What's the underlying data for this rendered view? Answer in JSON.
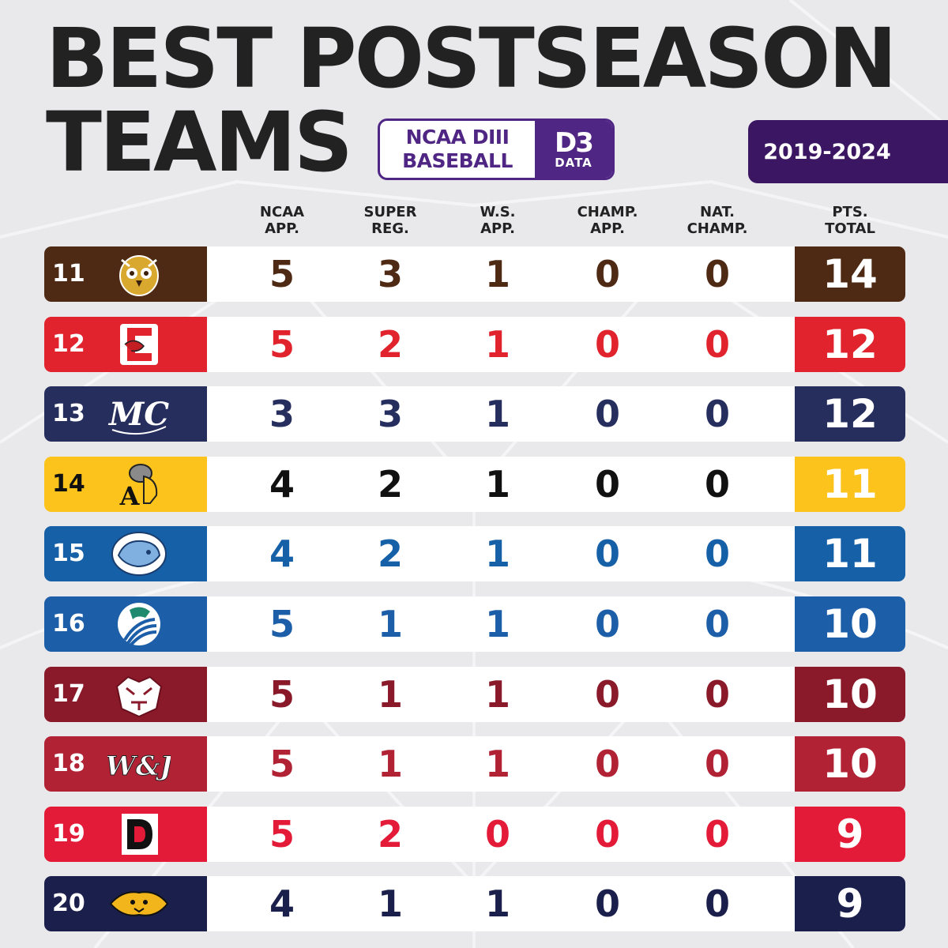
{
  "title": {
    "line1": "BEST POSTSEASON",
    "line2": "TEAMS"
  },
  "logo": {
    "line1": "NCAA DIII",
    "line2": "BASEBALL",
    "mark": "D3",
    "mark_sub": "DATA"
  },
  "years": "2019-2024",
  "colors": {
    "title": "#222222",
    "brand_purple": "#4f2683",
    "years_bg": "#3b1763",
    "background": "#e9e9ec"
  },
  "columns": [
    {
      "line1": "NCAA",
      "line2": "APP."
    },
    {
      "line1": "SUPER",
      "line2": "REG."
    },
    {
      "line1": "W.S.",
      "line2": "APP."
    },
    {
      "line1": "CHAMP.",
      "line2": "APP."
    },
    {
      "line1": "NAT.",
      "line2": "CHAMP."
    },
    {
      "line1": "PTS.",
      "line2": "TOTAL"
    }
  ],
  "rows": [
    {
      "rank": "11",
      "emblem": "owl-logo",
      "color": "#4e2a14",
      "text_color": "#4e2a14",
      "ncaa_app": "5",
      "super_reg": "3",
      "ws_app": "1",
      "champ_app": "0",
      "nat_champ": "0",
      "total": "14"
    },
    {
      "rank": "12",
      "emblem": "c-dragon-logo",
      "color": "#e0232c",
      "text_color": "#e0232c",
      "ncaa_app": "5",
      "super_reg": "2",
      "ws_app": "1",
      "champ_app": "0",
      "nat_champ": "0",
      "total": "12"
    },
    {
      "rank": "13",
      "emblem": "mc-script-logo",
      "color": "#262e5e",
      "text_color": "#262e5e",
      "ncaa_app": "3",
      "super_reg": "3",
      "ws_app": "1",
      "champ_app": "0",
      "nat_champ": "0",
      "total": "12"
    },
    {
      "rank": "14",
      "emblem": "bulldog-a-logo",
      "color": "#fbc31c",
      "text_color": "#111111",
      "ncaa_app": "4",
      "super_reg": "2",
      "ws_app": "1",
      "champ_app": "0",
      "nat_champ": "0",
      "total": "11"
    },
    {
      "rank": "15",
      "emblem": "blue-cat-logo",
      "color": "#1660a8",
      "text_color": "#1660a8",
      "ncaa_app": "4",
      "super_reg": "2",
      "ws_app": "1",
      "champ_app": "0",
      "nat_champ": "0",
      "total": "11"
    },
    {
      "rank": "16",
      "emblem": "hawk-logo",
      "color": "#1d5ea8",
      "text_color": "#1d5ea8",
      "ncaa_app": "5",
      "super_reg": "1",
      "ws_app": "1",
      "champ_app": "0",
      "nat_champ": "0",
      "total": "10"
    },
    {
      "rank": "17",
      "emblem": "tiger-logo",
      "color": "#8a1a2a",
      "text_color": "#8a1a2a",
      "ncaa_app": "5",
      "super_reg": "1",
      "ws_app": "1",
      "champ_app": "0",
      "nat_champ": "0",
      "total": "10"
    },
    {
      "rank": "18",
      "emblem": "wj-logo",
      "color": "#b22235",
      "text_color": "#b22235",
      "ncaa_app": "5",
      "super_reg": "1",
      "ws_app": "1",
      "champ_app": "0",
      "nat_champ": "0",
      "total": "10"
    },
    {
      "rank": "19",
      "emblem": "d-block-logo",
      "color": "#e31b38",
      "text_color": "#e31b38",
      "ncaa_app": "5",
      "super_reg": "2",
      "ws_app": "0",
      "champ_app": "0",
      "nat_champ": "0",
      "total": "9"
    },
    {
      "rank": "20",
      "emblem": "wildcat-logo",
      "color": "#1b1f4b",
      "text_color": "#1b1f4b",
      "ncaa_app": "4",
      "super_reg": "1",
      "ws_app": "1",
      "champ_app": "0",
      "nat_champ": "0",
      "total": "9"
    }
  ]
}
